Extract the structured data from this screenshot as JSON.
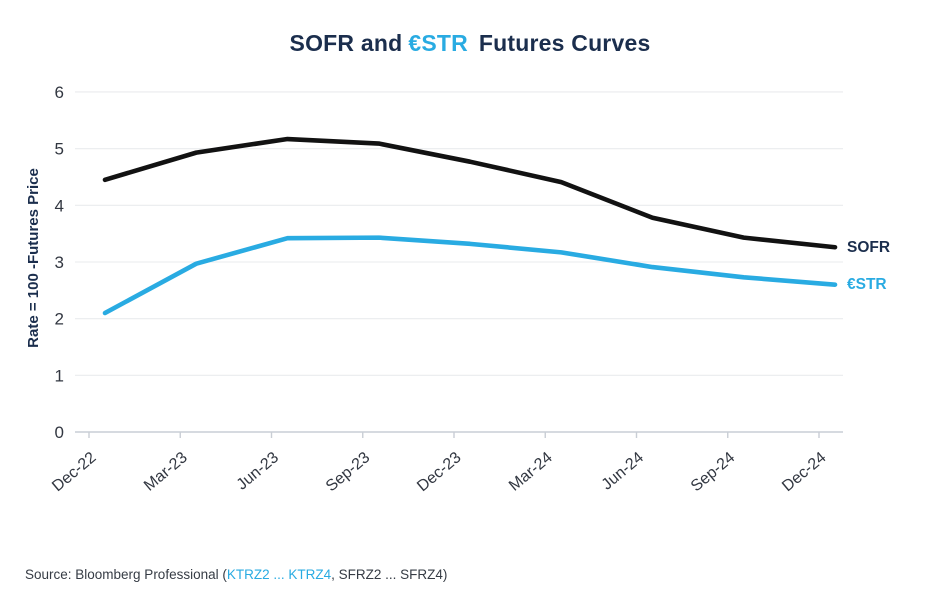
{
  "title": {
    "part1": "SOFR and",
    "part2": "€STR",
    "part3": "Futures Curves"
  },
  "series_labels": {
    "sofr": "SOFR",
    "estr": "€STR"
  },
  "source": {
    "part1": "Source: Bloomberg Professional (",
    "part2": "KTRZ2 ... KTRZ4",
    "part3": ", SFRZ2 ... SFRZ4)"
  },
  "colors": {
    "navy": "#1B2E4D",
    "blue": "#29ABE2",
    "line_black": "#121212",
    "grid": "#e9ebee",
    "axis": "#c9ced5",
    "tick_text": "#323741",
    "source_text": "#363c45"
  },
  "chart_data": {
    "type": "line",
    "title": "SOFR and €STR Futures Curves",
    "ylabel": "Rate = 100 -Futures Price",
    "xlabel": "",
    "categories": [
      "Dec-22",
      "Mar-23",
      "Jun-23",
      "Sep-23",
      "Dec-23",
      "Mar-24",
      "Jun-24",
      "Sep-24",
      "Dec-24"
    ],
    "series": [
      {
        "name": "SOFR",
        "color": "#121212",
        "values": [
          4.45,
          4.93,
          5.17,
          5.09,
          4.77,
          4.41,
          3.78,
          3.43,
          3.26
        ]
      },
      {
        "name": "€STR",
        "color": "#29ABE2",
        "values": [
          2.1,
          2.97,
          3.42,
          3.43,
          3.32,
          3.17,
          2.91,
          2.73,
          2.6
        ]
      }
    ],
    "ylim": [
      0,
      6
    ],
    "yticks": [
      0,
      1,
      2,
      3,
      4,
      5,
      6
    ],
    "grid": "horizontal",
    "legend_position": "right-end-labels",
    "x_tick_rotation_deg": -40
  }
}
